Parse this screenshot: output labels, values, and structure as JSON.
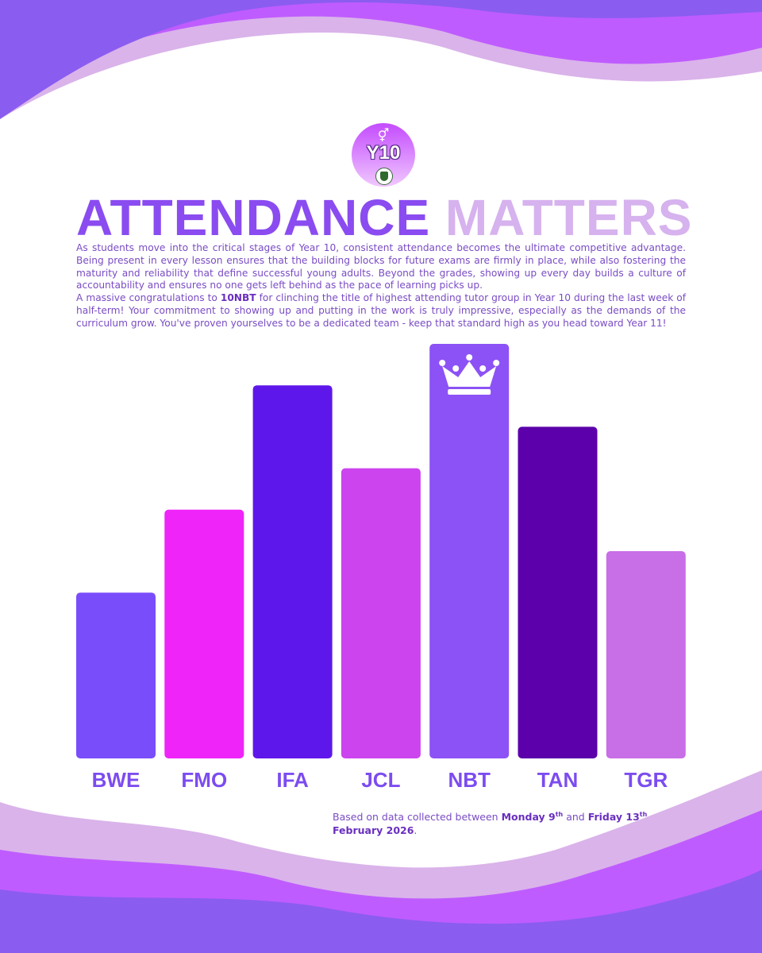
{
  "colors": {
    "wave_dark": "#8b5cf0",
    "wave_mid": "#bf5cff",
    "wave_light": "#dab3ea",
    "title_primary": "#8a4cf0",
    "title_secondary": "#d6b2ee",
    "text": "#7a4cc4"
  },
  "badge": {
    "label": "Y10",
    "icon": "gender-symbol-icon"
  },
  "title": {
    "part1": "ATTENDANCE",
    "part2": "MATTERS"
  },
  "intro": {
    "paragraph1": "As students move into the critical stages of Year 10, consistent attendance becomes the ultimate competitive advantage. Being present in every lesson ensures that the building blocks for future exams are firmly in place, while also fostering the maturity and reliability that define successful young adults. Beyond the grades, showing up every day builds a culture of accountability and ensures no one gets left behind as the pace of learning picks up.",
    "p2_prefix": "A massive congratulations to ",
    "p2_highlight": "10NBT",
    "p2_suffix": " for clinching the title of highest attending tutor group in Year 10 during the last week of half-term! Your commitment to showing up and putting in the work is truly impressive, especially as the demands of the curriculum grow. You've proven yourselves to be a dedicated team - keep that standard high as you head toward Year 11!"
  },
  "chart_data": {
    "type": "bar",
    "title": "",
    "xlabel": "",
    "ylabel": "",
    "categories": [
      "BWE",
      "FMO",
      "IFA",
      "JCL",
      "NBT",
      "TAN",
      "TGR"
    ],
    "values": [
      40,
      60,
      90,
      70,
      100,
      80,
      50
    ],
    "colors": [
      "#7a4dfb",
      "#ef24f9",
      "#5e17eb",
      "#cc44ee",
      "#8c52f5",
      "#5b00aa",
      "#c86ee6"
    ],
    "ylim": [
      0,
      100
    ],
    "winner": "NBT",
    "winner_icon": "crown-icon"
  },
  "footnote": {
    "prefix": "Based on data collected between ",
    "start_day": "Monday 9",
    "start_sup": "th",
    "middle": " and ",
    "end_day": "Friday 13",
    "end_sup": "th",
    "end_month": "February 2026",
    "suffix": "."
  }
}
